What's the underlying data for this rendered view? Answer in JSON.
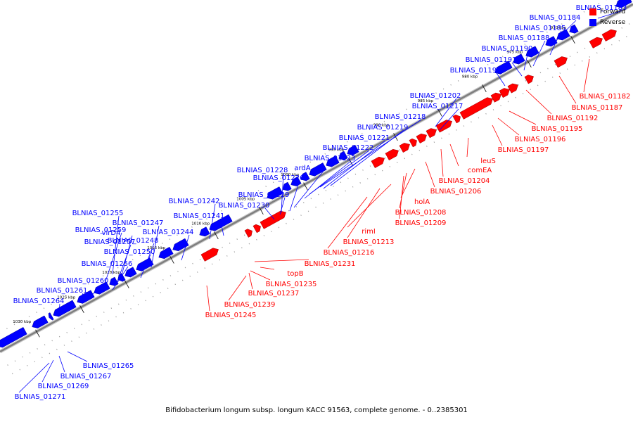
{
  "caption": "Bifidobacterium longum subsp. longum KACC 91563, complete genome. - 0..2385301",
  "legend": [
    {
      "label": "Forward",
      "color": "#ff0000"
    },
    {
      "label": "Reverse",
      "color": "#0000ff"
    }
  ],
  "colors": {
    "forward": "#ff0000",
    "reverse": "#0000ff",
    "backbone": "#7f7f7f"
  },
  "ticks": [
    "970 kbp",
    "975 kbp",
    "980 kbp",
    "985 kbp",
    "990 kbp",
    "995 kbp",
    "1000 kbp",
    "1005 kbp",
    "1010 kbp",
    "1015 kbp",
    "1020 kbp",
    "1025 kbp",
    "1030 kbp"
  ],
  "reverse_labels": [
    "BLNIAS_01183",
    "BLNIAS_01184",
    "BLNIAS_01185",
    "BLNIAS_01188",
    "BLNIAS_01190",
    "BLNIAS_01191",
    "BLNIAS_01193",
    "BLNIAS_01202",
    "BLNIAS_01217",
    "BLNIAS_01218",
    "BLNIAS_01219",
    "BLNIAS_01221",
    "BLNIAS_01222",
    "BLNIAS_01223",
    "ardA",
    "BLNIAS_01228",
    "BLNIAS_01226",
    "BLNIAS_01229",
    "BLNIAS_01230",
    "BLNIAS_01242",
    "BLNIAS_01241",
    "BLNIAS_01255",
    "BLNIAS_01247",
    "BLNIAS_01259",
    "virD4",
    "BLNIAS_01244",
    "BLNIAS_01257",
    "BLNIAS_01248",
    "BLNIAS_01250",
    "BLNIAS_01256",
    "BLNIAS_01260",
    "BLNIAS_01261",
    "BLNIAS_01264"
  ],
  "forward_labels": [
    "BLNIAS_01182",
    "BLNIAS_01187",
    "BLNIAS_01192",
    "BLNIAS_01195",
    "BLNIAS_01196",
    "BLNIAS_01197",
    "leuS",
    "comEA",
    "BLNIAS_01204",
    "BLNIAS_01206",
    "holA",
    "BLNIAS_01208",
    "BLNIAS_01209",
    "rimI",
    "BLNIAS_01213",
    "BLNIAS_01216",
    "BLNIAS_01231",
    "topB",
    "BLNIAS_01235",
    "BLNIAS_01237",
    "BLNIAS_01239",
    "BLNIAS_01245"
  ],
  "bottom_labels": [
    "BLNIAS_01265",
    "BLNIAS_01267",
    "BLNIAS_01269",
    "BLNIAS_01271"
  ]
}
